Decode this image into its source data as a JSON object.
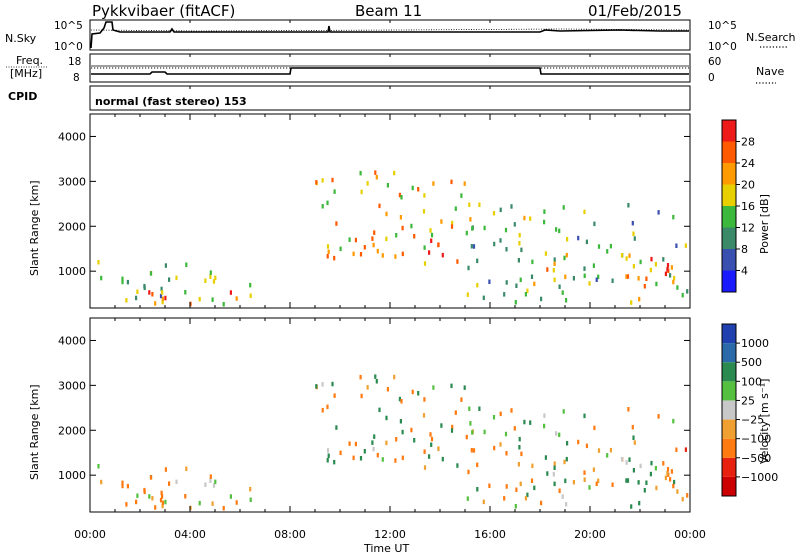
{
  "header": {
    "station": "Pykkvibaer (fitACF)",
    "beam": "Beam 11",
    "date": "01/Feb/2015"
  },
  "nsky_panel": {
    "left_label": "N.Sky",
    "right_label": "N.Search",
    "left_ticks": [
      "10^5",
      "10^0"
    ],
    "right_ticks": [
      "10^5",
      "10^0"
    ]
  },
  "freq_panel": {
    "left_label_line1": "Freq.",
    "left_label_line2": "[MHz]",
    "right_label": "Nave",
    "left_ticks": [
      "18",
      "8"
    ],
    "right_ticks": [
      "60",
      "0"
    ]
  },
  "cpid_panel": {
    "label": "CPID",
    "text": "normal (fast stereo) 153"
  },
  "power_panel": {
    "ylabel": "Slant Range [km]",
    "yticks": [
      "1000",
      "2000",
      "3000",
      "4000"
    ],
    "colorbar_label": "Power [dB]",
    "colorbar_ticks": [
      "4",
      "8",
      "12",
      "16",
      "20",
      "24",
      "28"
    ],
    "colors": [
      "#1a1aff",
      "#3a50b0",
      "#3a8a6a",
      "#3cb83c",
      "#e8d000",
      "#ff9a00",
      "#ff5a00",
      "#ee1a1a"
    ]
  },
  "velocity_panel": {
    "ylabel": "Slant Range [km]",
    "yticks": [
      "1000",
      "2000",
      "3000",
      "4000"
    ],
    "colorbar_label": "Velocity [m s⁻¹]",
    "colorbar_ticks": [
      "1000",
      "500",
      "100",
      "25",
      "−25",
      "−100",
      "−500",
      "−1000"
    ],
    "colors": [
      "#2040b0",
      "#2a6aa8",
      "#2a8a50",
      "#55c040",
      "#c8c8c8",
      "#f0a030",
      "#ff7a10",
      "#e82010",
      "#cc0000"
    ]
  },
  "xaxis": {
    "label": "Time UT",
    "ticks": [
      "00:00",
      "04:00",
      "08:00",
      "12:00",
      "16:00",
      "20:00",
      "00:00"
    ]
  },
  "chart_data": {
    "type": "heatmap",
    "title": "Pykkvibaer (fitACF) Beam 11 01/Feb/2015",
    "xlabel": "Time UT",
    "ylabel": "Slant Range [km]",
    "xlim_hours": [
      0,
      24
    ],
    "ylim_km": [
      180,
      4500
    ],
    "xticks": [
      "00:00",
      "04:00",
      "08:00",
      "12:00",
      "16:00",
      "20:00",
      "00:00"
    ],
    "yticks": [
      1000,
      2000,
      3000,
      4000
    ],
    "power_colorbar": {
      "label": "Power [dB]",
      "range": [
        0,
        32
      ],
      "ticks": [
        4,
        8,
        12,
        16,
        20,
        24,
        28
      ]
    },
    "velocity_colorbar": {
      "label": "Velocity [m s⁻¹]",
      "ticks": [
        1000,
        500,
        100,
        25,
        -25,
        -100,
        -500,
        -1000
      ]
    },
    "freq_change_hours": [
      8.0,
      18.0
    ],
    "scatter_regions": [
      {
        "t0": 0.0,
        "t1": 6.6,
        "r0": 250,
        "r1": 1300,
        "power_db": 14,
        "velocity": -120
      },
      {
        "t0": 0.0,
        "t1": 6.6,
        "r0": 250,
        "r1": 600,
        "power_db": 24,
        "velocity": -150
      },
      {
        "t0": 8.8,
        "t1": 15.2,
        "r0": 1100,
        "r1": 3200,
        "power_db": 20,
        "velocity": 0
      },
      {
        "t0": 10.5,
        "t1": 15.2,
        "r0": 1200,
        "r1": 1700,
        "power_db": 28,
        "velocity": 0
      },
      {
        "t0": 15.0,
        "t1": 24.0,
        "r0": 300,
        "r1": 2500,
        "power_db": 14,
        "velocity": 0
      },
      {
        "t0": 17.5,
        "t1": 23.0,
        "r0": 600,
        "r1": 1400,
        "power_db": 22,
        "velocity": 200
      },
      {
        "t0": 22.5,
        "t1": 24.0,
        "r0": 500,
        "r1": 1600,
        "power_db": 26,
        "velocity": -300
      }
    ]
  }
}
